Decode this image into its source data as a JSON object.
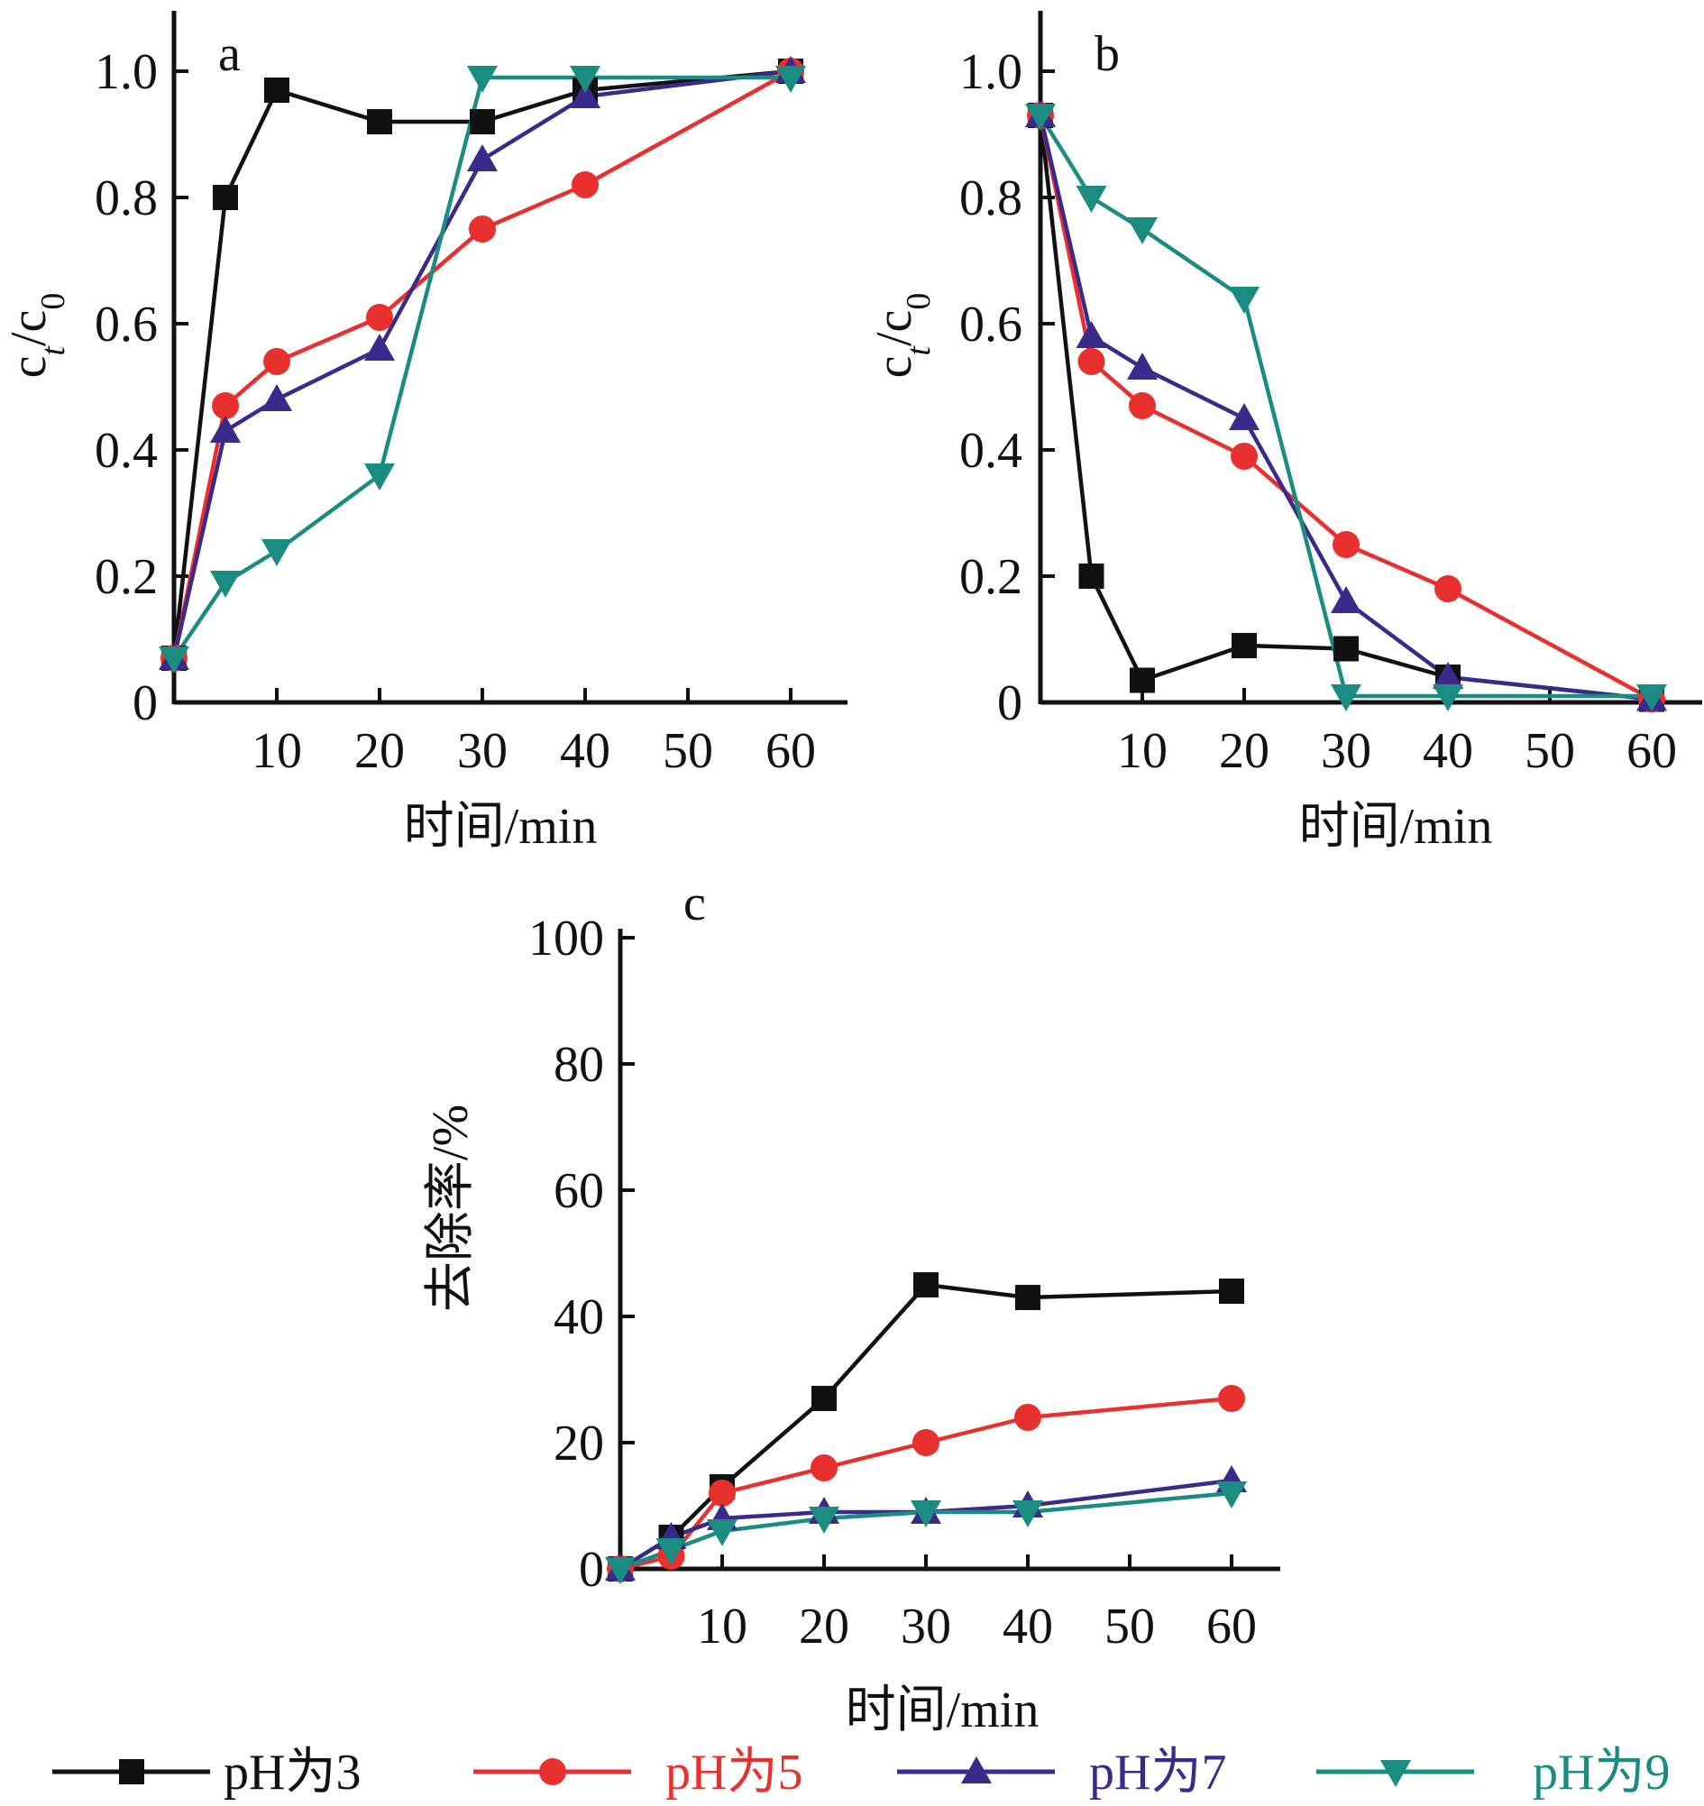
{
  "colors": {
    "pH3": "#111111",
    "pH5": "#e8302f",
    "pH7": "#3a2a8c",
    "pH9": "#1a8c82"
  },
  "legend": [
    {
      "label": "pH为3",
      "marker": "square",
      "color": "#111111"
    },
    {
      "label": "pH为5",
      "marker": "circle",
      "color": "#e8302f"
    },
    {
      "label": "pH为7",
      "marker": "triangle-up",
      "color": "#3a2a8c"
    },
    {
      "label": "pH为9",
      "marker": "triangle-down",
      "color": "#1a8c82"
    }
  ],
  "chart_data": [
    {
      "type": "line",
      "panel_label": "a",
      "xlabel": "时间/min",
      "ylabel": "ct/c0",
      "x_ticks": [
        10,
        20,
        30,
        40,
        50,
        60
      ],
      "y_ticks": [
        "0",
        "0.2",
        "0.4",
        "0.6",
        "0.8",
        "1.0"
      ],
      "xlim": [
        0,
        65
      ],
      "ylim": [
        0,
        1.1
      ],
      "grid": false,
      "series": [
        {
          "name": "pH为3",
          "marker": "square",
          "color": "#111111",
          "x": [
            0,
            5,
            10,
            20,
            30,
            40,
            60
          ],
          "y": [
            0.07,
            0.8,
            0.97,
            0.92,
            0.92,
            0.97,
            1.0
          ]
        },
        {
          "name": "pH为5",
          "marker": "circle",
          "color": "#e8302f",
          "x": [
            0,
            5,
            10,
            20,
            30,
            40,
            60
          ],
          "y": [
            0.07,
            0.47,
            0.54,
            0.61,
            0.75,
            0.82,
            1.0
          ]
        },
        {
          "name": "pH为7",
          "marker": "triangle-up",
          "color": "#3a2a8c",
          "x": [
            0,
            5,
            10,
            20,
            30,
            40,
            60
          ],
          "y": [
            0.07,
            0.43,
            0.48,
            0.56,
            0.86,
            0.96,
            1.0
          ]
        },
        {
          "name": "pH为9",
          "marker": "triangle-down",
          "color": "#1a8c82",
          "x": [
            0,
            5,
            10,
            20,
            30,
            40,
            60
          ],
          "y": [
            0.07,
            0.19,
            0.24,
            0.36,
            0.99,
            0.99,
            0.99
          ]
        }
      ]
    },
    {
      "type": "line",
      "panel_label": "b",
      "xlabel": "时间/min",
      "ylabel": "ct/c0",
      "x_ticks": [
        10,
        20,
        30,
        40,
        50,
        60
      ],
      "y_ticks": [
        "0",
        "0.2",
        "0.4",
        "0.6",
        "0.8",
        "1.0"
      ],
      "xlim": [
        0,
        65
      ],
      "ylim": [
        0,
        1.1
      ],
      "grid": false,
      "series": [
        {
          "name": "pH为3",
          "marker": "square",
          "color": "#111111",
          "x": [
            0,
            5,
            10,
            20,
            30,
            40,
            60
          ],
          "y": [
            0.93,
            0.2,
            0.035,
            0.09,
            0.085,
            0.04,
            0.005
          ]
        },
        {
          "name": "pH为5",
          "marker": "circle",
          "color": "#e8302f",
          "x": [
            0,
            5,
            10,
            20,
            30,
            40,
            60
          ],
          "y": [
            0.93,
            0.54,
            0.47,
            0.39,
            0.25,
            0.18,
            0.005
          ]
        },
        {
          "name": "pH为7",
          "marker": "triangle-up",
          "color": "#3a2a8c",
          "x": [
            0,
            5,
            10,
            20,
            30,
            40,
            60
          ],
          "y": [
            0.93,
            0.58,
            0.53,
            0.45,
            0.16,
            0.04,
            0.005
          ]
        },
        {
          "name": "pH为9",
          "marker": "triangle-down",
          "color": "#1a8c82",
          "x": [
            0,
            5,
            10,
            20,
            30,
            40,
            60
          ],
          "y": [
            0.93,
            0.8,
            0.75,
            0.64,
            0.01,
            0.01,
            0.01
          ]
        }
      ]
    },
    {
      "type": "line",
      "panel_label": "c",
      "xlabel": "时间/min",
      "ylabel": "去除率/%",
      "x_ticks": [
        10,
        20,
        30,
        40,
        50,
        60
      ],
      "y_ticks": [
        "0",
        "20",
        "40",
        "60",
        "80",
        "100"
      ],
      "xlim": [
        0,
        65
      ],
      "ylim": [
        0,
        100
      ],
      "grid": false,
      "series": [
        {
          "name": "pH为3",
          "marker": "square",
          "color": "#111111",
          "x": [
            0,
            5,
            10,
            20,
            30,
            40,
            60
          ],
          "y": [
            0,
            5,
            13,
            27,
            45,
            43,
            44
          ]
        },
        {
          "name": "pH为5",
          "marker": "circle",
          "color": "#e8302f",
          "x": [
            0,
            5,
            10,
            20,
            30,
            40,
            60
          ],
          "y": [
            0,
            2,
            12,
            16,
            20,
            24,
            27
          ]
        },
        {
          "name": "pH为7",
          "marker": "triangle-up",
          "color": "#3a2a8c",
          "x": [
            0,
            5,
            10,
            20,
            30,
            40,
            60
          ],
          "y": [
            0,
            5,
            8,
            9,
            9,
            10,
            14
          ]
        },
        {
          "name": "pH为9",
          "marker": "triangle-down",
          "color": "#1a8c82",
          "x": [
            0,
            5,
            10,
            20,
            30,
            40,
            60
          ],
          "y": [
            0,
            3,
            6,
            8,
            9,
            9,
            12
          ]
        }
      ]
    }
  ]
}
